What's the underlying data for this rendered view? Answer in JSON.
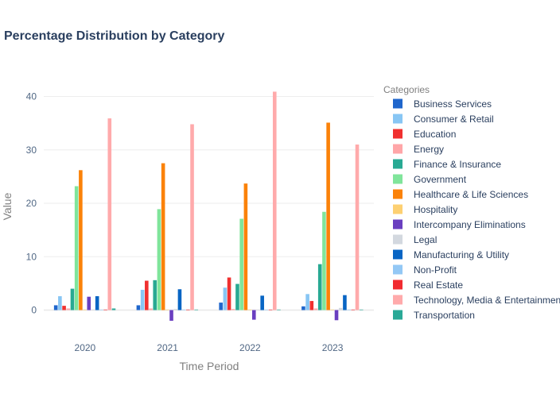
{
  "chart_data": {
    "type": "bar",
    "title": "Percentage Distribution by Category",
    "xlabel": "Time Period",
    "ylabel": "Value",
    "ylim": [
      -2.3,
      42.5
    ],
    "yticks": [
      0,
      10,
      20,
      30,
      40
    ],
    "grid": true,
    "legend_position": "right",
    "legend_title": "Categories",
    "categories": [
      "2020",
      "2021",
      "2022",
      "2023"
    ],
    "series": [
      {
        "name": "Business Services",
        "color": "#1f66cc",
        "values": [
          0.9,
          0.9,
          1.4,
          0.7
        ]
      },
      {
        "name": "Consumer & Retail",
        "color": "#88c6f4",
        "values": [
          2.6,
          3.8,
          4.2,
          3.0
        ]
      },
      {
        "name": "Education",
        "color": "#f0302f",
        "values": [
          0.8,
          5.5,
          6.1,
          1.7
        ]
      },
      {
        "name": "Energy",
        "color": "#ffa6a8",
        "values": [
          0.3,
          0.3,
          0.2,
          0.3
        ]
      },
      {
        "name": "Finance & Insurance",
        "color": "#28a993",
        "values": [
          4.0,
          5.6,
          4.9,
          8.6
        ]
      },
      {
        "name": "Government",
        "color": "#80e59b",
        "values": [
          23.2,
          18.9,
          17.1,
          18.4
        ]
      },
      {
        "name": "Healthcare & Life Sciences",
        "color": "#fb8209",
        "values": [
          26.2,
          27.5,
          23.7,
          35.1
        ]
      },
      {
        "name": "Hospitality",
        "color": "#fdd072",
        "values": [
          0.1,
          0.1,
          0.1,
          0.1
        ]
      },
      {
        "name": "Intercompany Eliminations",
        "color": "#6a3fc0",
        "values": [
          2.5,
          -2.0,
          -1.8,
          -1.9
        ]
      },
      {
        "name": "Legal",
        "color": "#d3d8df",
        "values": [
          0.1,
          0.2,
          0.1,
          0.4
        ]
      },
      {
        "name": "Manufacturing & Utility",
        "color": "#0865c4",
        "values": [
          2.6,
          3.9,
          2.7,
          2.8
        ]
      },
      {
        "name": "Non-Profit",
        "color": "#93c8f5",
        "values": [
          0.1,
          0.1,
          0.1,
          0.1
        ]
      },
      {
        "name": "Real Estate",
        "color": "#f12b30",
        "values": [
          0.1,
          0.1,
          0.1,
          0.1
        ]
      },
      {
        "name": "Technology, Media & Entertainment",
        "color": "#ffaaab",
        "values": [
          35.9,
          34.8,
          40.9,
          31.0
        ]
      },
      {
        "name": "Transportation",
        "color": "#2aa997",
        "values": [
          0.3,
          0.1,
          0.1,
          0.1
        ]
      }
    ]
  }
}
